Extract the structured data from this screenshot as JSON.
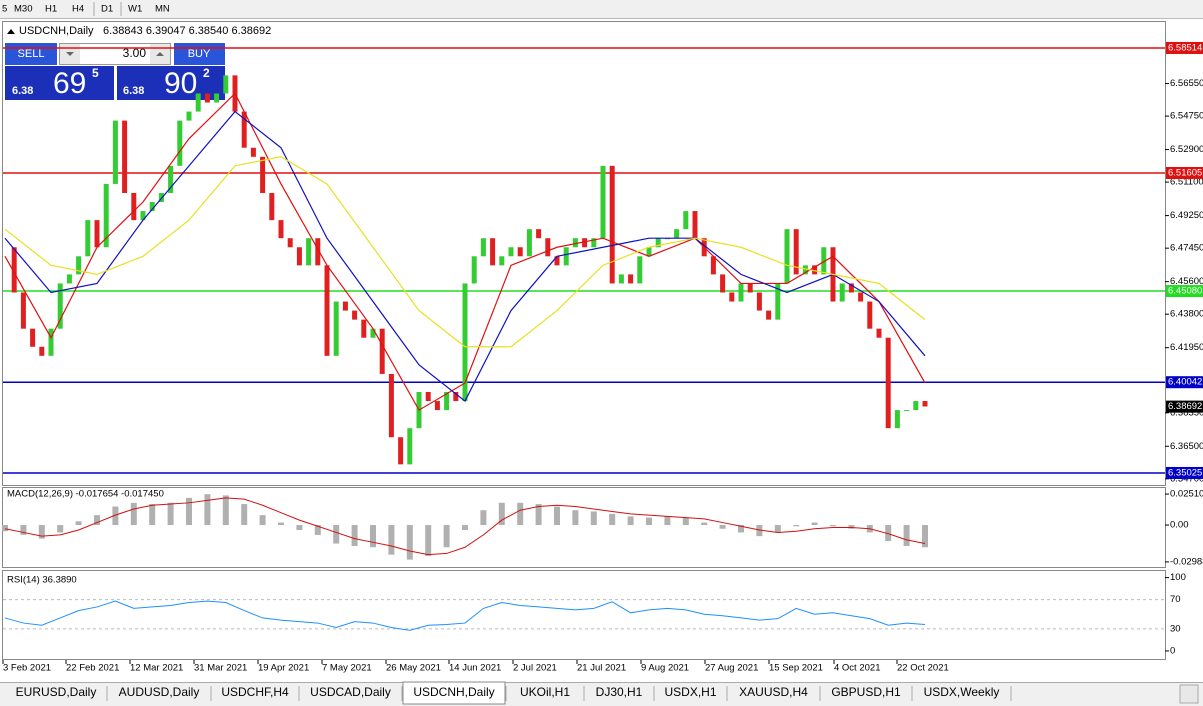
{
  "toolbar": {
    "timeframes": [
      "5",
      "M30",
      "H1",
      "H4",
      "D1",
      "W1",
      "MN"
    ]
  },
  "header": {
    "symbol": "USDCNH,Daily",
    "ohlc": "6.38843 6.39047 6.38540 6.38692"
  },
  "trade_panel": {
    "sell": "SELL",
    "buy": "BUY",
    "lot": "3.00",
    "sell_price": {
      "big": "6.38",
      "main": "69",
      "pip": "5"
    },
    "buy_price": {
      "big": "6.38",
      "main": "90",
      "pip": "2"
    }
  },
  "price_chart": {
    "ylim": [
      6.3436,
      6.5995
    ],
    "yticks": [
      {
        "value": 6.5655,
        "label": "6.56550"
      },
      {
        "value": 6.5475,
        "label": "6.54750"
      },
      {
        "value": 6.529,
        "label": "6.52900"
      },
      {
        "value": 6.511,
        "label": "6.51100"
      },
      {
        "value": 6.4925,
        "label": "6.49250"
      },
      {
        "value": 6.4745,
        "label": "6.47450"
      },
      {
        "value": 6.456,
        "label": "6.45600"
      },
      {
        "value": 6.438,
        "label": "6.43800"
      },
      {
        "value": 6.4195,
        "label": "6.41950"
      },
      {
        "value": 6.3835,
        "label": "6.38350"
      },
      {
        "value": 6.365,
        "label": "6.36500"
      },
      {
        "value": 6.347,
        "label": "6.34700"
      }
    ],
    "levels": [
      {
        "value": 6.58514,
        "label": "6.58514",
        "color": "#e01010"
      },
      {
        "value": 6.51605,
        "label": "6.51605",
        "color": "#e01010"
      },
      {
        "value": 6.4508,
        "label": "6.45080",
        "color": "#22dd22"
      },
      {
        "value": 6.40042,
        "label": "6.40042",
        "color": "#0000c8"
      },
      {
        "value": 6.35025,
        "label": "6.35025",
        "color": "#0000c8"
      }
    ],
    "current": {
      "value": 6.38692,
      "label": "6.38692"
    },
    "closes": [
      6.475,
      6.45,
      6.43,
      6.42,
      6.415,
      6.43,
      6.455,
      6.46,
      6.47,
      6.49,
      6.475,
      6.51,
      6.545,
      6.505,
      6.49,
      6.495,
      6.5,
      6.505,
      6.52,
      6.545,
      6.55,
      6.56,
      6.555,
      6.56,
      6.57,
      6.55,
      6.53,
      6.525,
      6.505,
      6.49,
      6.48,
      6.475,
      6.465,
      6.48,
      6.465,
      6.415,
      6.445,
      6.44,
      6.435,
      6.425,
      6.43,
      6.405,
      6.37,
      6.355,
      6.375,
      6.395,
      6.39,
      6.385,
      6.395,
      6.39,
      6.455,
      6.47,
      6.48,
      6.465,
      6.47,
      6.475,
      6.47,
      6.485,
      6.48,
      6.47,
      6.465,
      6.475,
      6.48,
      6.475,
      6.48,
      6.52,
      6.455,
      6.46,
      6.455,
      6.47,
      6.475,
      6.48,
      6.48,
      6.485,
      6.495,
      6.48,
      6.47,
      6.46,
      6.45,
      6.445,
      6.455,
      6.45,
      6.44,
      6.435,
      6.455,
      6.485,
      6.46,
      6.465,
      6.46,
      6.475,
      6.445,
      6.455,
      6.45,
      6.445,
      6.43,
      6.425,
      6.375,
      6.385,
      6.385,
      6.39,
      6.387
    ],
    "moving_averages": [
      {
        "color": "#e01010",
        "values": [
          6.47,
          6.425,
          6.475,
          6.5,
          6.535,
          6.56,
          6.51,
          6.465,
          6.43,
          6.385,
          6.4,
          6.465,
          6.475,
          6.48,
          6.47,
          6.48,
          6.455,
          6.455,
          6.47,
          6.445,
          6.4
        ]
      },
      {
        "color": "#1010c0",
        "values": [
          6.48,
          6.45,
          6.455,
          6.49,
          6.52,
          6.55,
          6.53,
          6.48,
          6.445,
          6.41,
          6.39,
          6.44,
          6.47,
          6.475,
          6.48,
          6.48,
          6.46,
          6.45,
          6.46,
          6.445,
          6.415
        ]
      },
      {
        "color": "#e8e020",
        "values": [
          6.485,
          6.465,
          6.46,
          6.47,
          6.49,
          6.52,
          6.525,
          6.51,
          6.475,
          6.44,
          6.42,
          6.42,
          6.44,
          6.465,
          6.475,
          6.48,
          6.475,
          6.465,
          6.46,
          6.455,
          6.435
        ]
      }
    ]
  },
  "macd": {
    "label": "MACD(12,26,9) -0.017654 -0.017450",
    "ylim": [
      -0.034,
      0.03
    ],
    "yticks": [
      {
        "value": 0.0251,
        "label": "0.025100"
      },
      {
        "value": 0,
        "label": "0.00"
      },
      {
        "value": -0.02988,
        "label": "-0.029880"
      }
    ],
    "histogram": [
      -0.005,
      -0.008,
      -0.011,
      -0.006,
      0.003,
      0.008,
      0.015,
      0.018,
      0.017,
      0.018,
      0.022,
      0.025,
      0.024,
      0.017,
      0.008,
      0.002,
      -0.004,
      -0.008,
      -0.015,
      -0.017,
      -0.018,
      -0.024,
      -0.028,
      -0.025,
      -0.018,
      -0.004,
      0.012,
      0.018,
      0.018,
      0.017,
      0.015,
      0.012,
      0.011,
      0.009,
      0.007,
      0.006,
      0.007,
      0.006,
      0.002,
      -0.003,
      -0.006,
      -0.009,
      -0.006,
      -0.001,
      0.002,
      -0.001,
      -0.003,
      -0.006,
      -0.013,
      -0.017,
      -0.018
    ],
    "signal": [
      -0.003,
      -0.006,
      -0.009,
      -0.008,
      -0.004,
      0.002,
      0.008,
      0.013,
      0.016,
      0.017,
      0.018,
      0.02,
      0.022,
      0.021,
      0.016,
      0.01,
      0.004,
      -0.001,
      -0.006,
      -0.011,
      -0.014,
      -0.017,
      -0.021,
      -0.024,
      -0.023,
      -0.018,
      -0.008,
      0.004,
      0.012,
      0.015,
      0.016,
      0.015,
      0.013,
      0.011,
      0.009,
      0.008,
      0.007,
      0.006,
      0.005,
      0.002,
      -0.001,
      -0.004,
      -0.006,
      -0.005,
      -0.003,
      -0.002,
      -0.002,
      -0.003,
      -0.007,
      -0.012,
      -0.015
    ]
  },
  "rsi": {
    "label": "RSI(14) 36.3890",
    "ylim": [
      -11,
      109
    ],
    "yticks": [
      100,
      70,
      30,
      0
    ],
    "values": [
      45,
      38,
      35,
      45,
      55,
      60,
      68,
      58,
      60,
      62,
      66,
      68,
      66,
      55,
      45,
      42,
      40,
      38,
      32,
      40,
      38,
      32,
      28,
      35,
      36,
      38,
      58,
      66,
      62,
      60,
      58,
      56,
      58,
      67,
      52,
      56,
      58,
      56,
      50,
      48,
      45,
      42,
      44,
      58,
      50,
      52,
      48,
      44,
      35,
      38,
      36
    ]
  },
  "x_labels": [
    "3 Feb 2021",
    "22 Feb 2021",
    "12 Mar 2021",
    "31 Mar 2021",
    "19 Apr 2021",
    "7 May 2021",
    "26 May 2021",
    "14 Jun 2021",
    "2 Jul 2021",
    "21 Jul 2021",
    "9 Aug 2021",
    "27 Aug 2021",
    "15 Sep 2021",
    "4 Oct 2021",
    "22 Oct 2021"
  ],
  "tabs": {
    "items": [
      "EURUSD,Daily",
      "AUDUSD,Daily",
      "USDCHF,H4",
      "USDCAD,Daily",
      "USDCNH,Daily",
      "UKOil,H1",
      "DJ30,H1",
      "USDX,H1",
      "XAUUSD,H4",
      "GBPUSD,H1",
      "USDX,Weekly"
    ],
    "active": 4
  }
}
